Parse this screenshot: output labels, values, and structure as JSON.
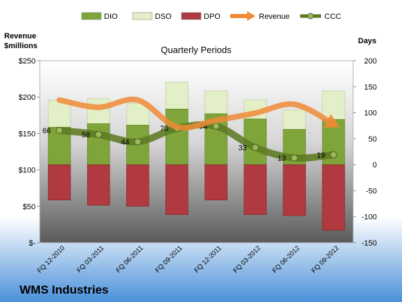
{
  "chart_data": {
    "type": "bar",
    "subtitle": "Quarterly Periods",
    "company": "WMS Industries",
    "left_axis": {
      "label_line1": "Revenue",
      "label_line2": "$millions",
      "ylim": [
        0,
        250
      ],
      "ticks": [
        "$-",
        "$50",
        "$100",
        "$150",
        "$200",
        "$250"
      ]
    },
    "right_axis": {
      "label": "Days",
      "ylim": [
        -150,
        200
      ],
      "ticks": [
        "-150",
        "-100",
        "-50",
        "0",
        "50",
        "100",
        "150",
        "200"
      ]
    },
    "categories": [
      "FQ 12-2010",
      "FQ 03-2011",
      "FQ 06-2011",
      "FQ 09-2011",
      "FQ 12-2011",
      "FQ 03-2012",
      "FQ 06-2012",
      "FQ 09-2012"
    ],
    "legend": [
      "DIO",
      "DSO",
      "DPO",
      "Revenue",
      "CCC"
    ],
    "series": [
      {
        "name": "DIO",
        "axis": "days",
        "color": "#7fa53a",
        "values": [
          72,
          79,
          76,
          107,
          98,
          88,
          68,
          87
        ]
      },
      {
        "name": "DSO",
        "axis": "days",
        "color": "#e3efc6",
        "values": [
          52,
          48,
          42,
          52,
          44,
          37,
          37,
          55
        ]
      },
      {
        "name": "DPO",
        "axis": "days",
        "color": "#b03a3f",
        "values": [
          -68,
          -78,
          -80,
          -96,
          -68,
          -96,
          -98,
          -126
        ]
      },
      {
        "name": "Revenue",
        "axis": "revenue",
        "color": "#f08a36",
        "values": [
          196,
          186,
          196,
          159,
          168,
          178,
          190,
          163
        ]
      },
      {
        "name": "CCC",
        "axis": "days",
        "color": "#5d7a22",
        "values": [
          66,
          58,
          44,
          70,
          74,
          33,
          13,
          19
        ],
        "labels": [
          "66",
          "58",
          "44",
          "70",
          "74",
          "33",
          "13",
          "19"
        ]
      }
    ]
  }
}
